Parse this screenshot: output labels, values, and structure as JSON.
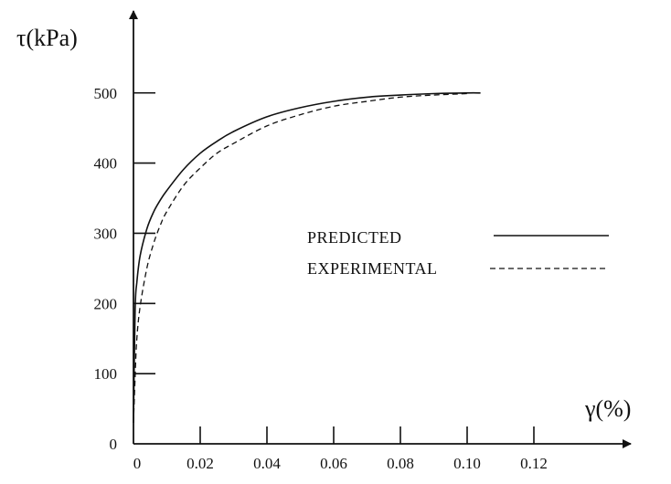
{
  "chart_data": {
    "type": "line",
    "title": "",
    "xlabel": "γ(%)",
    "ylabel": "τ(kPa)",
    "xlim": [
      0,
      0.13
    ],
    "ylim": [
      0,
      530
    ],
    "x_ticks": [
      0,
      0.02,
      0.04,
      0.06,
      0.08,
      0.1,
      0.12
    ],
    "x_tick_labels": [
      "0",
      "0.02",
      "0.04",
      "0.06",
      "0.08",
      "0.10",
      "0.12"
    ],
    "y_ticks": [
      0,
      100,
      200,
      300,
      400,
      500
    ],
    "y_tick_labels": [
      "0",
      "100",
      "200",
      "300",
      "400",
      "500"
    ],
    "grid": false,
    "legend_position": "center-right",
    "series": [
      {
        "name": "PREDICTED",
        "style": "solid",
        "color": "#111111",
        "x": [
          0,
          0.0005,
          0.001,
          0.002,
          0.004,
          0.006,
          0.008,
          0.01,
          0.015,
          0.02,
          0.025,
          0.03,
          0.04,
          0.05,
          0.06,
          0.07,
          0.08,
          0.09,
          0.1,
          0.104
        ],
        "y": [
          30,
          190,
          230,
          268,
          306,
          330,
          347,
          361,
          391,
          414,
          431,
          445,
          466,
          479,
          488,
          494,
          497,
          499,
          500,
          500
        ]
      },
      {
        "name": "EXPERIMENTAL",
        "style": "dashed",
        "color": "#111111",
        "x": [
          0,
          0.0005,
          0.001,
          0.002,
          0.004,
          0.006,
          0.008,
          0.01,
          0.015,
          0.02,
          0.025,
          0.03,
          0.04,
          0.05,
          0.06,
          0.07,
          0.08,
          0.09,
          0.1
        ],
        "y": [
          30,
          95,
          150,
          196,
          250,
          285,
          311,
          331,
          368,
          393,
          414,
          428,
          453,
          469,
          481,
          488,
          494,
          497,
          499
        ]
      }
    ]
  }
}
